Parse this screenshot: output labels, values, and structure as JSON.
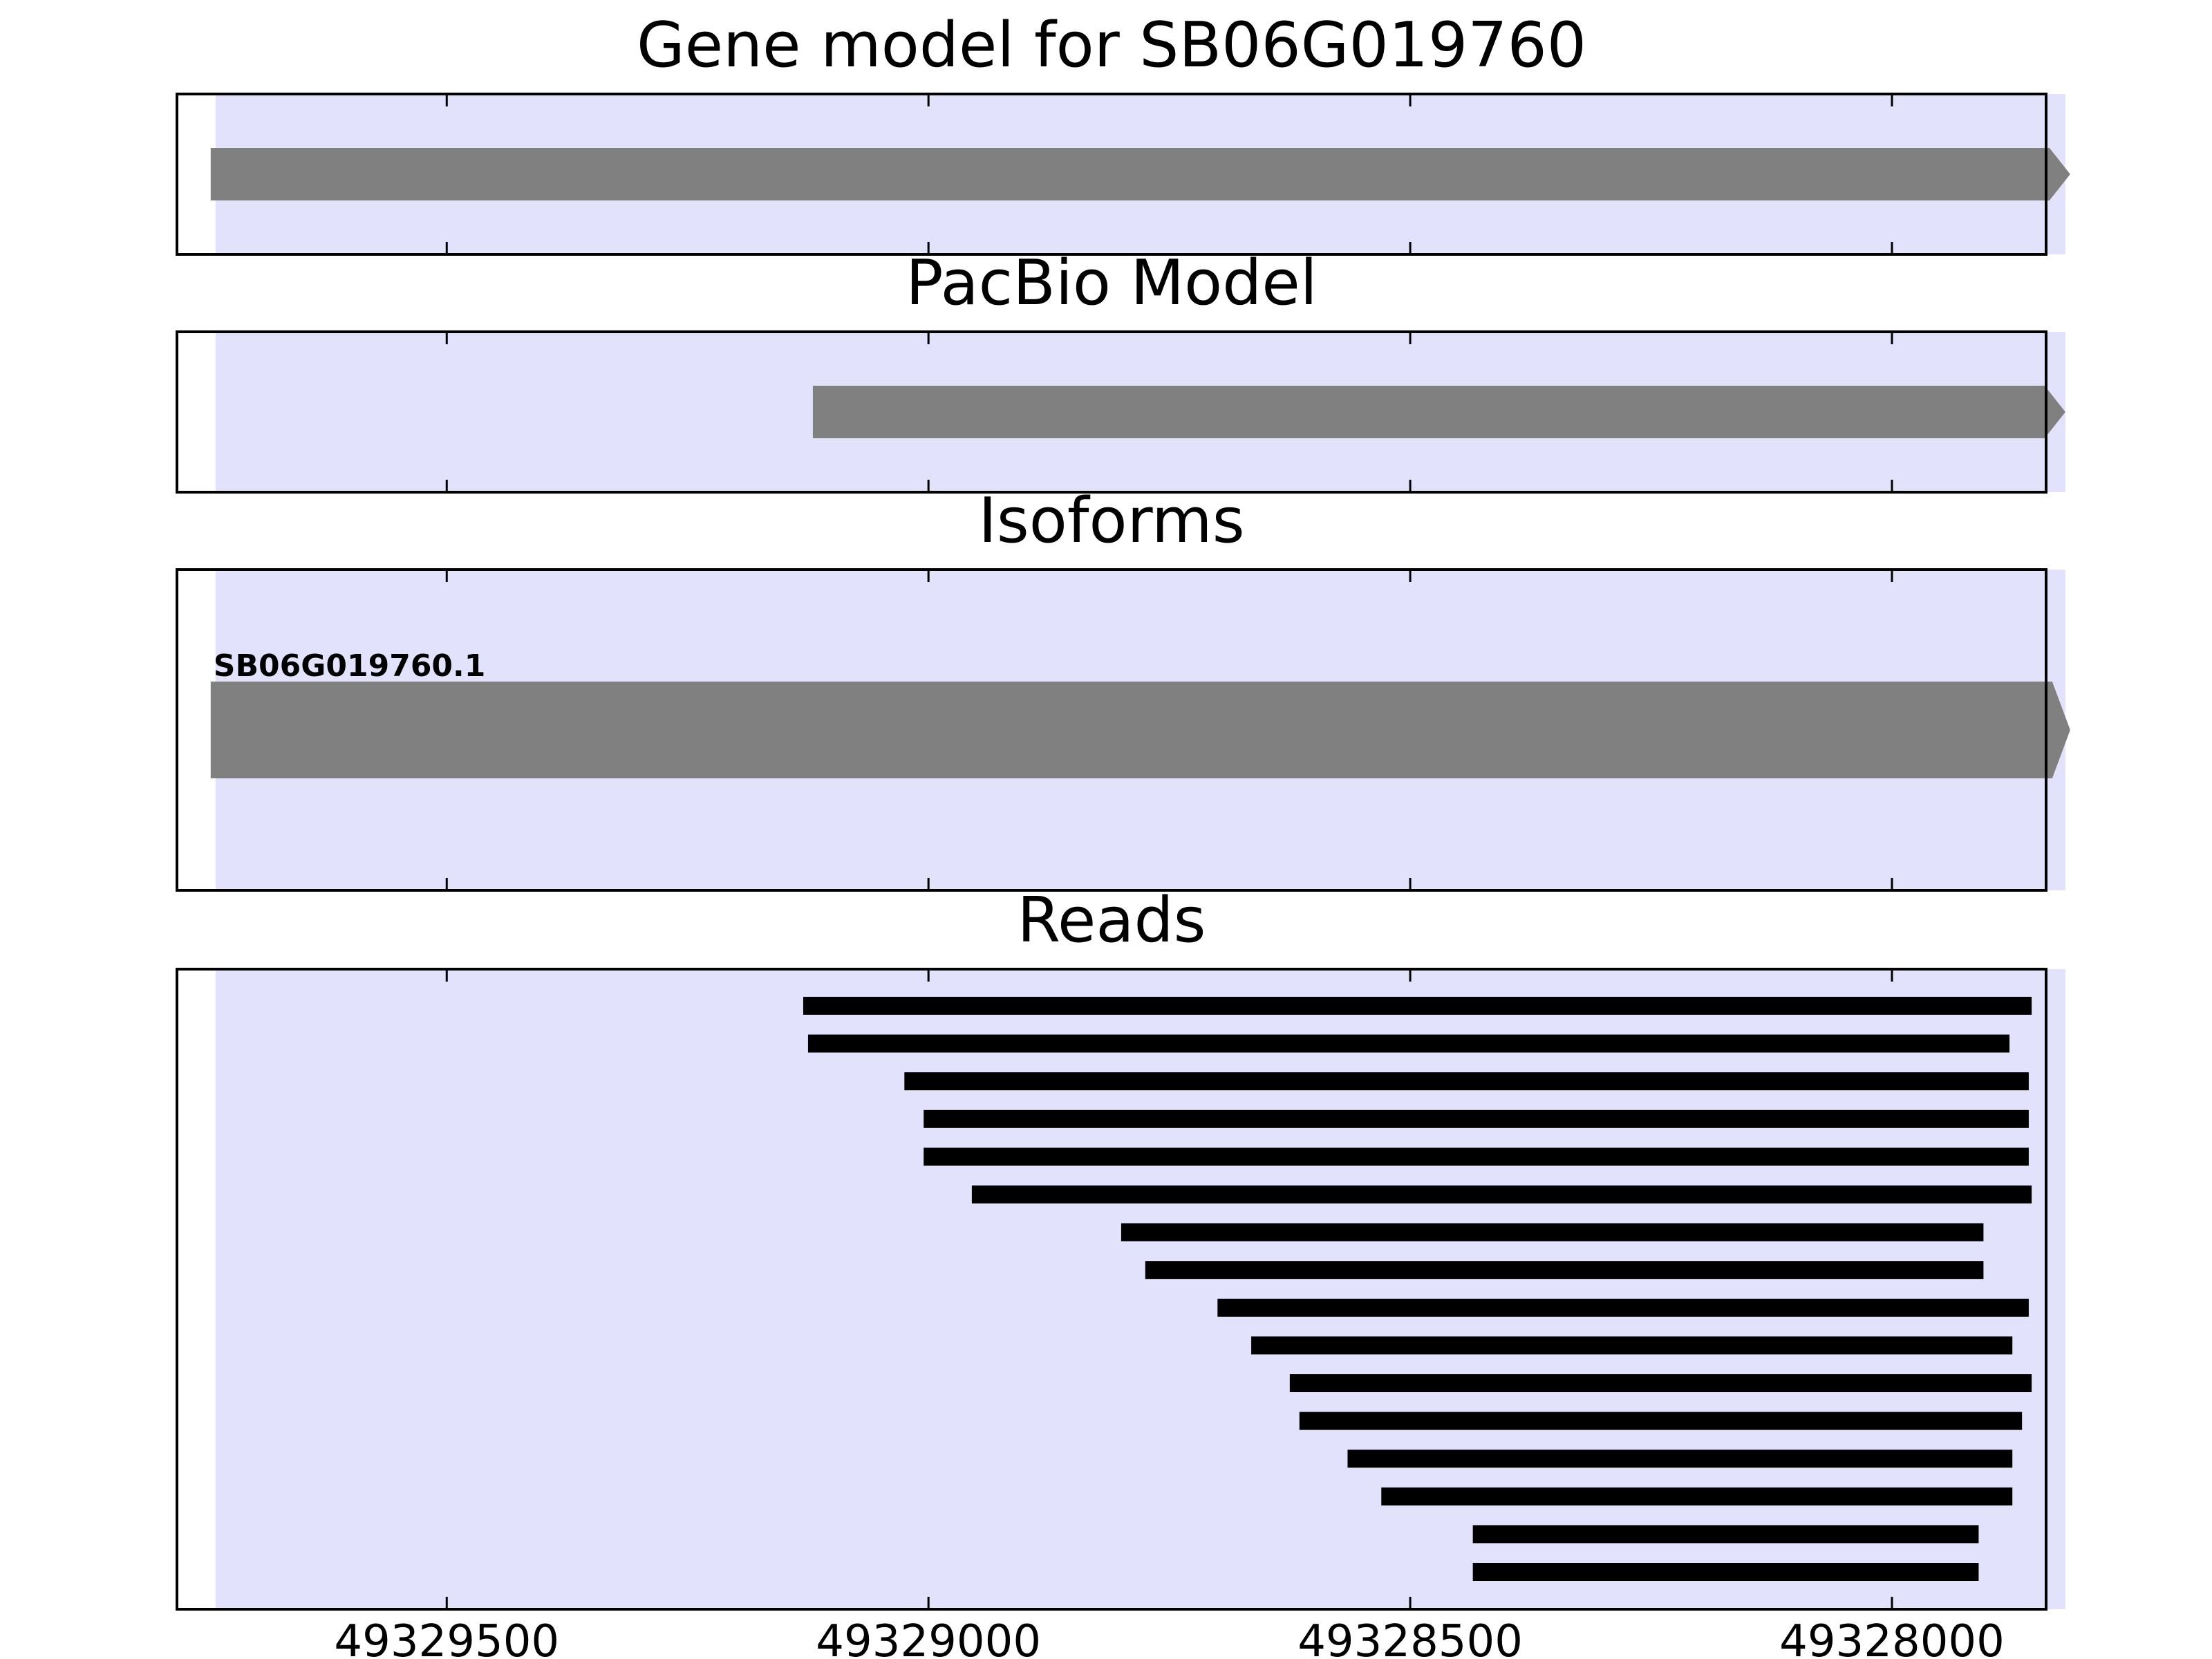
{
  "chart_data": {
    "type": "gene-track",
    "x_axis": {
      "reversed": true,
      "xlim": [
        49329780,
        49327840
      ],
      "ticks": [
        49329500,
        49329000,
        49328500,
        49328000
      ],
      "tick_labels": [
        "49329500",
        "49329000",
        "49328500",
        "49328000"
      ]
    },
    "shaded_region": {
      "from": 49329740,
      "to": 49327820
    },
    "panels": [
      {
        "title": "Gene model for SB06G019760",
        "features": [
          {
            "start": 49329745,
            "end": 49327815,
            "strand": "-"
          }
        ]
      },
      {
        "title": "PacBio Model",
        "features": [
          {
            "start": 49329120,
            "end": 49327820,
            "strand": "-"
          }
        ]
      },
      {
        "title": "Isoforms",
        "features": [
          {
            "label": "SB06G019760.1",
            "start": 49329745,
            "end": 49327815,
            "strand": "-"
          }
        ]
      },
      {
        "title": "Reads",
        "reads": [
          [
            49329130,
            49327855
          ],
          [
            49329125,
            49327878
          ],
          [
            49329025,
            49327858
          ],
          [
            49329005,
            49327858
          ],
          [
            49329005,
            49327858
          ],
          [
            49328955,
            49327855
          ],
          [
            49328800,
            49327905
          ],
          [
            49328775,
            49327905
          ],
          [
            49328700,
            49327858
          ],
          [
            49328665,
            49327875
          ],
          [
            49328625,
            49327855
          ],
          [
            49328615,
            49327865
          ],
          [
            49328565,
            49327875
          ],
          [
            49328530,
            49327875
          ],
          [
            49328435,
            49327910
          ],
          [
            49328435,
            49327910
          ]
        ]
      }
    ],
    "colors": {
      "shade": "#e2e2fc",
      "feature": "#808080",
      "read": "#000000",
      "frame": "#000000"
    }
  }
}
